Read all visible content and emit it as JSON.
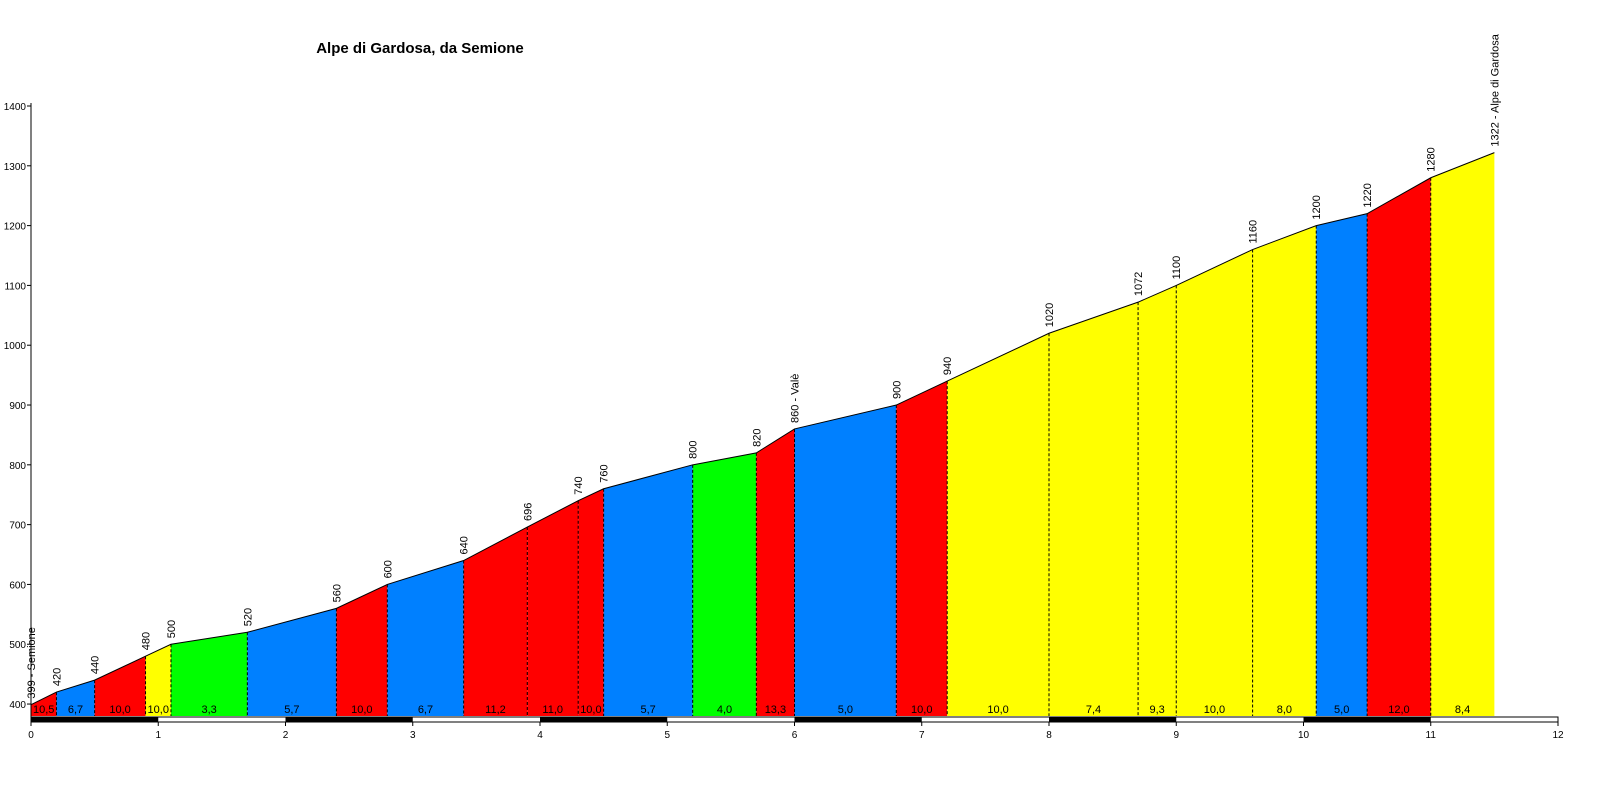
{
  "chart_data": {
    "type": "area",
    "title": "Alpe di Gardosa, da Semione",
    "x": [
      0,
      0.2,
      0.5,
      0.9,
      1.1,
      1.7,
      2.4,
      2.8,
      3.4,
      3.9,
      4.3,
      4.5,
      5.2,
      5.7,
      6.0,
      6.8,
      7.2,
      8.0,
      8.7,
      9.0,
      9.6,
      10.1,
      10.5,
      11.0,
      11.5
    ],
    "values": [
      399,
      420,
      440,
      480,
      500,
      520,
      560,
      600,
      640,
      696,
      740,
      760,
      800,
      820,
      860,
      900,
      940,
      1020,
      1072,
      1100,
      1160,
      1200,
      1220,
      1280,
      1322
    ],
    "value_labels": [
      "399 - Semione",
      "420",
      "440",
      "480",
      "500",
      "520",
      "560",
      "600",
      "640",
      "696",
      "740",
      "760",
      "800",
      "820",
      "860 - Valè",
      "900",
      "940",
      "1020",
      "1072",
      "1100",
      "1160",
      "1200",
      "1220",
      "1280",
      "1322 - Alpe di Gardosa"
    ],
    "segments": {
      "values": [
        10.5,
        6.7,
        10.0,
        10.0,
        3.3,
        5.7,
        10.0,
        6.7,
        11.2,
        11.0,
        10.0,
        5.7,
        4.0,
        13.3,
        5.0,
        10.0,
        10.0,
        7.4,
        9.3,
        10.0,
        8.0,
        5.0,
        12.0,
        8.4
      ],
      "value_labels": [
        "10,5",
        "6,7",
        "10,0",
        "10,0",
        "3,3",
        "5,7",
        "10,0",
        "6,7",
        "11,2",
        "11,0",
        "10,0",
        "5,7",
        "4,0",
        "13,3",
        "5,0",
        "10,0",
        "10,0",
        "7,4",
        "9,3",
        "10,0",
        "8,0",
        "5,0",
        "12,0",
        "8,4"
      ],
      "colors": [
        "#ff0000",
        "#0080ff",
        "#ff0000",
        "#ffff00",
        "#00ff00",
        "#0080ff",
        "#ff0000",
        "#0080ff",
        "#ff0000",
        "#ff0000",
        "#ff0000",
        "#0080ff",
        "#00ff00",
        "#ff0000",
        "#0080ff",
        "#ff0000",
        "#ffff00",
        "#ffff00",
        "#ffff00",
        "#ffff00",
        "#ffff00",
        "#0080ff",
        "#ff0000",
        "#ffff00"
      ]
    },
    "xlim": [
      0,
      12
    ],
    "xticks": [
      0,
      1,
      2,
      3,
      4,
      5,
      6,
      7,
      8,
      9,
      10,
      11,
      12
    ],
    "ylim": [
      380,
      1400
    ],
    "yticks": [
      400,
      500,
      600,
      700,
      800,
      900,
      1000,
      1100,
      1200,
      1300,
      1400
    ]
  }
}
